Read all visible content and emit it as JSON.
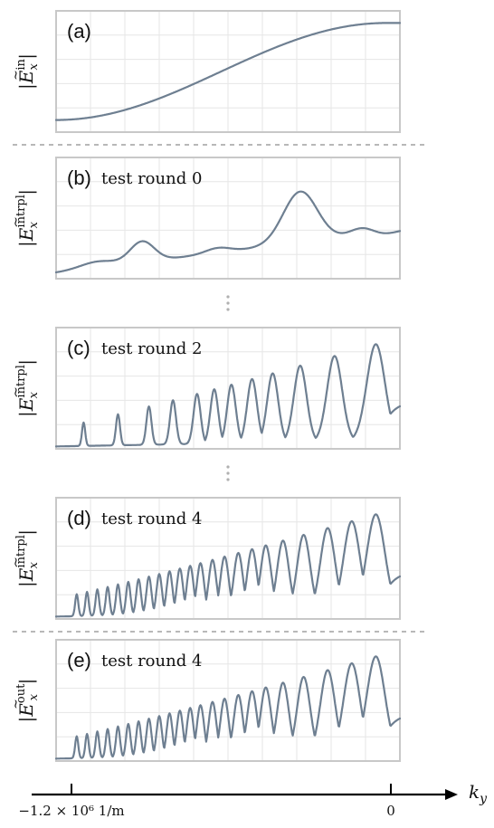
{
  "chart_data": [
    {
      "type": "line",
      "tag": "(a)",
      "title": "",
      "ylabel": {
        "main": "E",
        "sub": "x",
        "sup": "in"
      },
      "shape": "smooth"
    },
    {
      "type": "line",
      "tag": "(b)",
      "title": "test round 0",
      "ylabel": {
        "main": "E",
        "sub": "x",
        "sup": "intrpl"
      },
      "shape": "wavy"
    },
    {
      "type": "line",
      "tag": "(c)",
      "title": "test round 2",
      "ylabel": {
        "main": "E",
        "sub": "x",
        "sup": "intrpl"
      },
      "shape": "osc",
      "peaks": [
        0.08,
        0.18,
        0.27,
        0.34,
        0.41,
        0.46,
        0.51,
        0.57,
        0.63,
        0.71,
        0.81,
        0.93
      ]
    },
    {
      "type": "line",
      "tag": "(d)",
      "title": "test round 4",
      "ylabel": {
        "main": "E",
        "sub": "x",
        "sup": "intrpl"
      },
      "shape": "osc",
      "peaks": [
        0.06,
        0.09,
        0.12,
        0.15,
        0.18,
        0.21,
        0.24,
        0.27,
        0.3,
        0.33,
        0.36,
        0.39,
        0.42,
        0.455,
        0.49,
        0.53,
        0.57,
        0.61,
        0.66,
        0.72,
        0.79,
        0.86,
        0.93
      ]
    },
    {
      "type": "line",
      "tag": "(e)",
      "title": "test round 4",
      "ylabel": {
        "main": "E",
        "sub": "x",
        "sup": "out"
      },
      "shape": "osc",
      "peaks": [
        0.06,
        0.09,
        0.12,
        0.15,
        0.18,
        0.21,
        0.24,
        0.27,
        0.3,
        0.33,
        0.36,
        0.39,
        0.42,
        0.455,
        0.49,
        0.53,
        0.57,
        0.61,
        0.66,
        0.72,
        0.79,
        0.86,
        0.93
      ]
    }
  ],
  "x_axis": {
    "name": "k",
    "name_sub": "y",
    "tick_labels": [
      "−1.2 × 10⁶ 1/m",
      "0"
    ],
    "ticks": [
      -1200000,
      0
    ],
    "xlim": [
      -1250000,
      0
    ]
  },
  "colors": {
    "curve": "#6e7f91",
    "frame": "#c8c8c8",
    "grid": "#e6e6e6"
  }
}
